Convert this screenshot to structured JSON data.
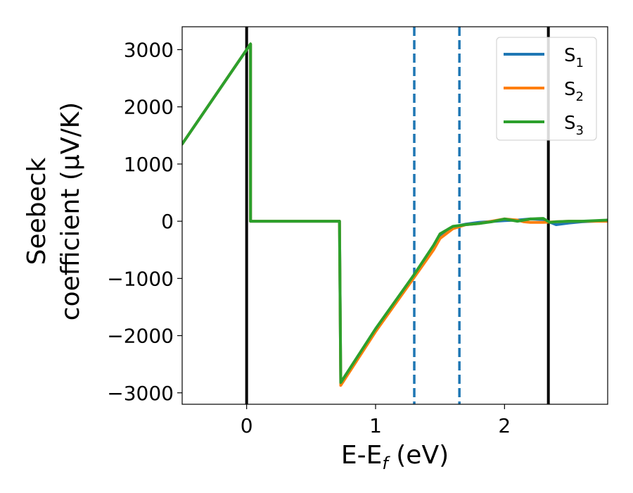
{
  "chart_data": {
    "type": "line",
    "title": "",
    "xlabel": "E-E_f (eV)",
    "xlabel_parts": {
      "main": "E-E",
      "sub": "f",
      "rest": " (eV)"
    },
    "ylabel_line1": "Seebeck",
    "ylabel_line2": "coefficient  (μV/K)",
    "xlim": [
      -0.5,
      2.8
    ],
    "ylim": [
      -3200,
      3400
    ],
    "xticks": [
      0,
      1,
      2
    ],
    "yticks": [
      -3000,
      -2000,
      -1000,
      0,
      1000,
      2000,
      3000
    ],
    "ytick_labels": [
      "−3000",
      "−2000",
      "−1000",
      "0",
      "1000",
      "2000",
      "3000"
    ],
    "grid": false,
    "legend_position": "top-right",
    "vlines": [
      {
        "x": 0.0,
        "color": "#000000",
        "style": "solid"
      },
      {
        "x": 2.34,
        "color": "#000000",
        "style": "solid"
      },
      {
        "x": 1.3,
        "color": "#1f77b4",
        "style": "dashed"
      },
      {
        "x": 1.65,
        "color": "#1f77b4",
        "style": "dashed"
      }
    ],
    "series": [
      {
        "name": "S1",
        "label_main": "S",
        "label_sub": "1",
        "color": "#1f77b4",
        "x": [
          -0.5,
          0.0,
          0.03,
          0.03,
          0.72,
          0.72,
          0.73,
          1.0,
          1.3,
          1.45,
          1.5,
          1.6,
          1.7,
          1.8,
          2.0,
          2.1,
          2.2,
          2.3,
          2.4,
          2.5,
          2.6,
          2.8
        ],
        "y": [
          1350,
          3000,
          3100,
          0,
          0,
          0,
          -2850,
          -1900,
          -950,
          -450,
          -250,
          -100,
          -50,
          -20,
          10,
          20,
          40,
          30,
          -60,
          -30,
          -10,
          10
        ]
      },
      {
        "name": "S2",
        "label_main": "S",
        "label_sub": "2",
        "color": "#ff7f0e",
        "x": [
          -0.5,
          0.0,
          0.03,
          0.03,
          0.72,
          0.72,
          0.73,
          1.0,
          1.3,
          1.45,
          1.5,
          1.6,
          1.7,
          1.8,
          2.0,
          2.1,
          2.15,
          2.2,
          2.3,
          2.4,
          2.5,
          2.6,
          2.8
        ],
        "y": [
          1350,
          3000,
          3100,
          0,
          0,
          0,
          -2870,
          -1930,
          -980,
          -500,
          -300,
          -130,
          -60,
          -40,
          40,
          20,
          -10,
          -20,
          -20,
          -10,
          0,
          0,
          0
        ]
      },
      {
        "name": "S3",
        "label_main": "S",
        "label_sub": "3",
        "color": "#2ca02c",
        "x": [
          -0.5,
          0.0,
          0.03,
          0.03,
          0.72,
          0.72,
          0.73,
          1.0,
          1.3,
          1.45,
          1.5,
          1.6,
          1.7,
          1.8,
          1.9,
          2.0,
          2.1,
          2.2,
          2.3,
          2.35,
          2.4,
          2.5,
          2.6,
          2.8
        ],
        "y": [
          1350,
          3000,
          3100,
          0,
          0,
          0,
          -2820,
          -1880,
          -930,
          -420,
          -220,
          -90,
          -60,
          -40,
          -10,
          40,
          0,
          40,
          50,
          -20,
          -10,
          0,
          0,
          20
        ]
      }
    ]
  }
}
